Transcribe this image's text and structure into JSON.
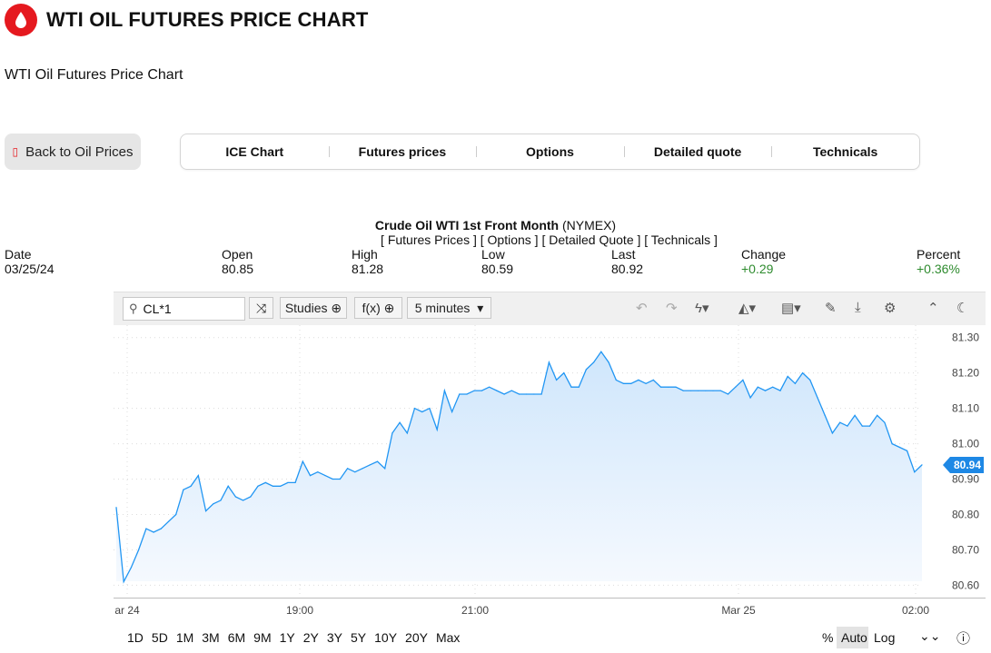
{
  "header": {
    "title": "WTI OIL FUTURES PRICE CHART",
    "subtitle": "WTI Oil Futures Price Chart"
  },
  "back_button": {
    "icon": "oil-drop-icon",
    "label": "Back to Oil Prices"
  },
  "tabs": [
    "ICE Chart",
    "Futures prices",
    "Options",
    "Detailed quote",
    "Technicals"
  ],
  "quote": {
    "name": "Crude Oil WTI 1st Front Month",
    "exchange": "(NYMEX)",
    "links": "[ Futures Prices ] [ Options ] [ Detailed Quote ] [ Technicals ]",
    "fields": [
      {
        "label": "Date",
        "value": "03/25/24"
      },
      {
        "label": "Open",
        "value": "80.85"
      },
      {
        "label": "High",
        "value": "81.28"
      },
      {
        "label": "Low",
        "value": "80.59"
      },
      {
        "label": "Last",
        "value": "80.92"
      },
      {
        "label": "Change",
        "value": "+0.29"
      },
      {
        "label": "Percent",
        "value": "+0.36%"
      }
    ]
  },
  "toolbar": {
    "symbol": "CL*1",
    "studies": "Studies",
    "fx": "f(x)",
    "interval": "5 minutes",
    "icons": [
      "search-icon",
      "shuffle-icon",
      "undo-icon",
      "redo-icon",
      "flash-icon",
      "chart-type-icon",
      "table-icon",
      "pencil-icon",
      "download-icon",
      "gear-icon",
      "collapse-icon",
      "dark-mode-icon"
    ]
  },
  "chart_data": {
    "type": "area",
    "y_ticks": [
      "81.30",
      "81.20",
      "81.10",
      "81.00",
      "80.90",
      "80.80",
      "80.70",
      "80.60"
    ],
    "ylim": [
      80.56,
      81.33
    ],
    "x_ticks": [
      "ar 24",
      "19:00",
      "21:00",
      "Mar 25",
      "02:00"
    ],
    "last_price": "80.94",
    "values": [
      80.82,
      80.61,
      80.65,
      80.7,
      80.76,
      80.75,
      80.76,
      80.78,
      80.8,
      80.87,
      80.88,
      80.91,
      80.81,
      80.83,
      80.84,
      80.88,
      80.85,
      80.84,
      80.85,
      80.88,
      80.89,
      80.88,
      80.88,
      80.89,
      80.89,
      80.95,
      80.91,
      80.92,
      80.91,
      80.9,
      80.9,
      80.93,
      80.92,
      80.93,
      80.94,
      80.95,
      80.93,
      81.03,
      81.06,
      81.03,
      81.1,
      81.09,
      81.1,
      81.04,
      81.15,
      81.09,
      81.14,
      81.14,
      81.15,
      81.15,
      81.16,
      81.15,
      81.14,
      81.15,
      81.14,
      81.14,
      81.14,
      81.14,
      81.23,
      81.18,
      81.2,
      81.16,
      81.16,
      81.21,
      81.23,
      81.26,
      81.23,
      81.18,
      81.17,
      81.17,
      81.18,
      81.17,
      81.18,
      81.16,
      81.16,
      81.16,
      81.15,
      81.15,
      81.15,
      81.15,
      81.15,
      81.15,
      81.14,
      81.16,
      81.18,
      81.13,
      81.16,
      81.15,
      81.16,
      81.15,
      81.19,
      81.17,
      81.2,
      81.18,
      81.13,
      81.08,
      81.03,
      81.06,
      81.05,
      81.08,
      81.05,
      81.05,
      81.08,
      81.06,
      81.0,
      80.99,
      80.98,
      80.92,
      80.94
    ],
    "line_color": "#2196f3",
    "fill_color": "#cfe6fc",
    "grid": true
  },
  "range_buttons": [
    "1D",
    "5D",
    "1M",
    "3M",
    "6M",
    "9M",
    "1Y",
    "2Y",
    "3Y",
    "5Y",
    "10Y",
    "20Y",
    "Max"
  ],
  "scale_buttons": {
    "percent": "%",
    "auto": "Auto",
    "log": "Log"
  }
}
